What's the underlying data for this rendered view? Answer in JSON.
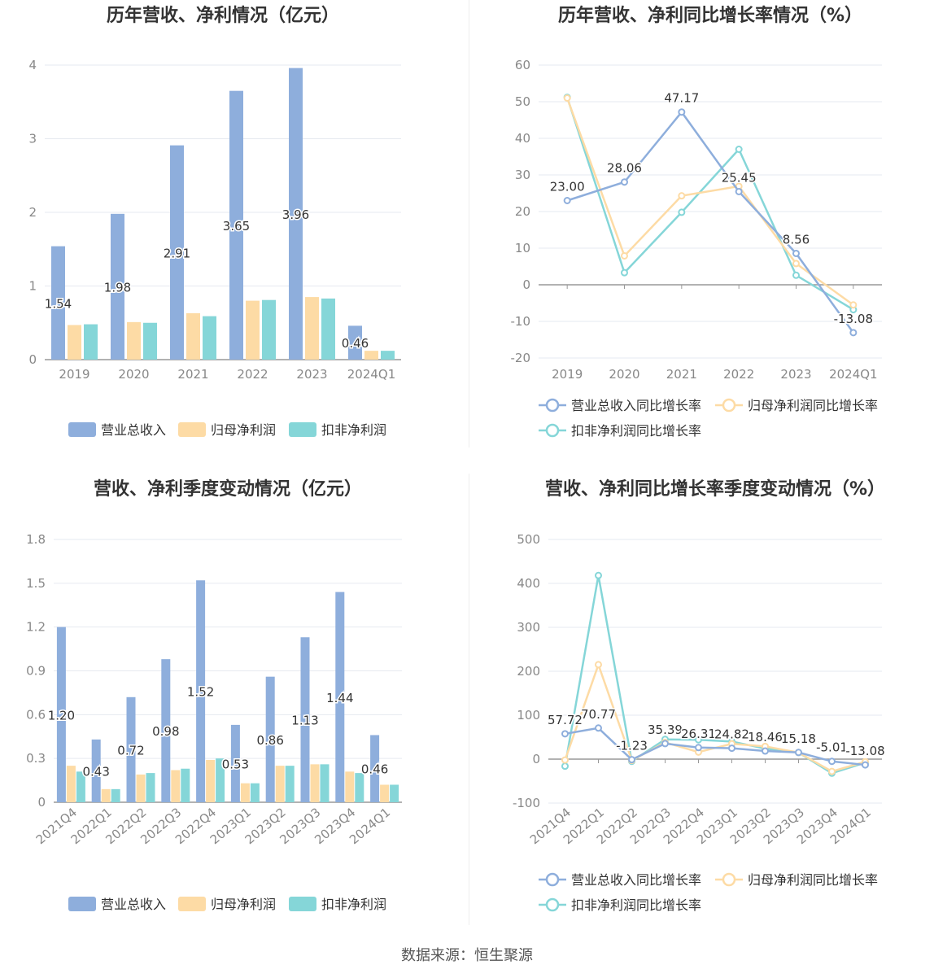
{
  "source_text": "数据来源：恒生聚源",
  "colors": {
    "revenue": "#8eaedc",
    "net_profit": "#fddba5",
    "deducted_profit": "#85d6d8",
    "grid": "#e6e9f0",
    "axis": "#999999",
    "axis_text": "#888888",
    "title": "#333333"
  },
  "legends": {
    "bar": [
      "营业总收入",
      "归母净利润",
      "扣非净利润"
    ],
    "line": [
      "营业总收入同比增长率",
      "归母净利润同比增长率",
      "扣非净利润同比增长率"
    ]
  },
  "chart_data": [
    {
      "type": "bar",
      "title": "历年营收、净利情况（亿元）",
      "categories": [
        "2019",
        "2020",
        "2021",
        "2022",
        "2023",
        "2024Q1"
      ],
      "ylim": [
        0,
        4
      ],
      "yticks": [
        0,
        1,
        2,
        3,
        4
      ],
      "ytick_labels": [
        "0",
        "1",
        "2",
        "3",
        "4"
      ],
      "series": [
        {
          "name": "营业总收入",
          "values": [
            1.54,
            1.98,
            2.91,
            3.65,
            3.96,
            0.46
          ],
          "labels": [
            "1.54",
            "1.98",
            "2.91",
            "3.65",
            "3.96",
            "0.46"
          ]
        },
        {
          "name": "归母净利润",
          "values": [
            0.47,
            0.51,
            0.63,
            0.8,
            0.85,
            0.12
          ]
        },
        {
          "name": "扣非净利润",
          "values": [
            0.48,
            0.5,
            0.59,
            0.81,
            0.83,
            0.12
          ]
        }
      ],
      "legend_position": "bottom",
      "grid": true
    },
    {
      "type": "line",
      "title": "历年营收、净利同比增长率情况（%）",
      "categories": [
        "2019",
        "2020",
        "2021",
        "2022",
        "2023",
        "2024Q1"
      ],
      "ylim": [
        -20,
        60
      ],
      "yticks": [
        -20,
        -10,
        0,
        10,
        20,
        30,
        40,
        50,
        60
      ],
      "ytick_labels": [
        "-20",
        "-10",
        "0",
        "10",
        "20",
        "30",
        "40",
        "50",
        "60"
      ],
      "series": [
        {
          "name": "营业总收入同比增长率",
          "values": [
            23.0,
            28.06,
            47.17,
            25.45,
            8.56,
            -13.08
          ],
          "labels": [
            "23.00",
            "28.06",
            "47.17",
            "25.45",
            "8.56",
            "-13.08"
          ]
        },
        {
          "name": "归母净利润同比增长率",
          "values": [
            51.0,
            7.9,
            24.3,
            26.9,
            5.8,
            -5.5
          ]
        },
        {
          "name": "扣非净利润同比增长率",
          "values": [
            51.2,
            3.3,
            19.8,
            37.0,
            2.6,
            -6.8
          ]
        }
      ],
      "legend_position": "bottom",
      "grid": true
    },
    {
      "type": "bar",
      "title": "营收、净利季度变动情况（亿元）",
      "categories": [
        "2021Q4",
        "2022Q1",
        "2022Q2",
        "2022Q3",
        "2022Q4",
        "2023Q1",
        "2023Q2",
        "2023Q3",
        "2023Q4",
        "2024Q1"
      ],
      "ylim": [
        0,
        1.8
      ],
      "yticks": [
        0,
        0.3,
        0.6,
        0.9,
        1.2,
        1.5,
        1.8
      ],
      "ytick_labels": [
        "0",
        "0.3",
        "0.6",
        "0.9",
        "1.2",
        "1.5",
        "1.8"
      ],
      "series": [
        {
          "name": "营业总收入",
          "values": [
            1.2,
            0.43,
            0.72,
            0.98,
            1.52,
            0.53,
            0.86,
            1.13,
            1.44,
            0.46
          ],
          "labels": [
            "1.20",
            "0.43",
            "0.72",
            "0.98",
            "1.52",
            "0.53",
            "0.86",
            "1.13",
            "1.44",
            "0.46"
          ]
        },
        {
          "name": "归母净利润",
          "values": [
            0.25,
            0.09,
            0.19,
            0.22,
            0.29,
            0.13,
            0.25,
            0.26,
            0.21,
            0.12
          ]
        },
        {
          "name": "扣非净利润",
          "values": [
            0.21,
            0.09,
            0.2,
            0.23,
            0.3,
            0.13,
            0.25,
            0.26,
            0.2,
            0.12
          ]
        }
      ],
      "legend_position": "bottom",
      "grid": true
    },
    {
      "type": "line",
      "title": "营收、净利同比增长率季度变动情况（%）",
      "categories": [
        "2021Q4",
        "2022Q1",
        "2022Q2",
        "2022Q3",
        "2022Q4",
        "2023Q1",
        "2023Q2",
        "2023Q3",
        "2023Q4",
        "2024Q1"
      ],
      "ylim": [
        -100,
        500
      ],
      "yticks": [
        -100,
        0,
        100,
        200,
        300,
        400,
        500
      ],
      "ytick_labels": [
        "-100",
        "0",
        "100",
        "200",
        "300",
        "400",
        "500"
      ],
      "series": [
        {
          "name": "营业总收入同比增长率",
          "values": [
            57.72,
            70.77,
            -1.23,
            35.39,
            26.31,
            24.82,
            18.46,
            15.18,
            -5.01,
            -13.08
          ],
          "labels": [
            "57.72",
            "70.77",
            "-1.23",
            "35.39",
            "26.31",
            "24.82",
            "18.46",
            "15.18",
            "-5.01",
            "-13.08"
          ]
        },
        {
          "name": "归母净利润同比增长率",
          "values": [
            -2,
            215,
            -3,
            38,
            16,
            35,
            29,
            15,
            -28,
            -6
          ]
        },
        {
          "name": "扣非净利润同比增长率",
          "values": [
            -16,
            418,
            -5,
            45,
            44,
            40,
            24,
            15,
            -32,
            -8
          ]
        }
      ],
      "legend_position": "bottom",
      "grid": true
    }
  ]
}
